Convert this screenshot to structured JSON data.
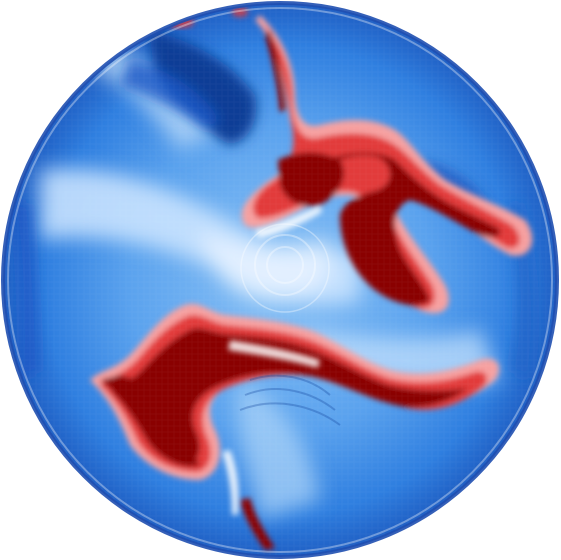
{
  "image": {
    "kind": "circular-field-plot",
    "description_colors": {
      "background": "#ffffff",
      "blue_dark": "#0a3c96",
      "blue_mid": "#2f7fe0",
      "blue_light": "#6fb0f2",
      "blue_pale": "#cfe6ff",
      "white": "#ffffff",
      "red_light": "#f6a0a0",
      "red_mid": "#e23a3a",
      "red_dark": "#8a0000"
    }
  }
}
